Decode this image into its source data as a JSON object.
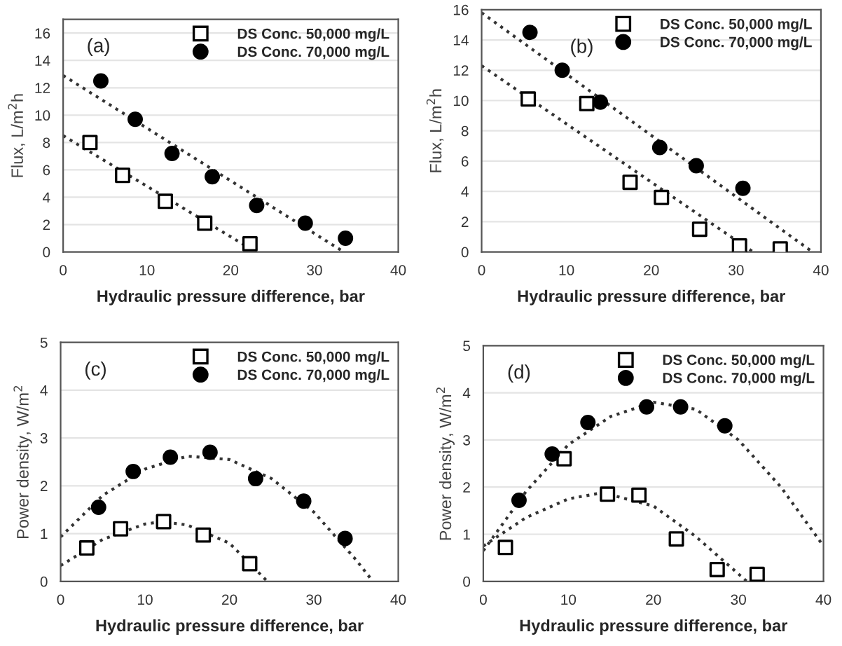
{
  "chart_data": [
    {
      "type": "scatter",
      "annotations": [
        "(a)"
      ],
      "xlabel": "Hydraulic pressure difference, bar",
      "ylabel": "Flux, L/m$^{2}$h",
      "xlim": [
        0,
        40
      ],
      "xticks": [
        0,
        10,
        20,
        30,
        40
      ],
      "ylim": [
        0,
        17
      ],
      "yticks": [
        0,
        2,
        4,
        6,
        8,
        10,
        12,
        14,
        16
      ],
      "grid": "y",
      "legend": "top right",
      "series": [
        {
          "name": "DS Conc. 50,000 mg/L",
          "color": "#000000",
          "marker": "square",
          "x": [
            3.2,
            7.1,
            12.2,
            16.9,
            22.3
          ],
          "values": [
            8.0,
            5.6,
            3.7,
            2.1,
            0.6
          ]
        },
        {
          "name": "DS Conc. 70,000 mg/L",
          "color": "#000000",
          "marker": "circle",
          "x": [
            4.5,
            8.6,
            13,
            17.8,
            23.1,
            28.9,
            33.7
          ],
          "values": [
            12.5,
            9.7,
            7.2,
            5.5,
            3.4,
            2.1,
            1.0
          ]
        },
        {
          "type": "line",
          "color": "#333333",
          "line_style": "dotted",
          "marker": "none",
          "x": [
            0,
            23
          ],
          "values": [
            8.5,
            0
          ]
        },
        {
          "type": "line",
          "color": "#333333",
          "line_style": "dotted",
          "marker": "none",
          "x": [
            0,
            33.5
          ],
          "values": [
            12.9,
            0
          ]
        }
      ]
    },
    {
      "type": "scatter",
      "annotations": [
        "(b)"
      ],
      "xlabel": "Hydraulic pressure difference, bar",
      "ylabel": "Flux, L/m$^{2}$h",
      "xlim": [
        0,
        40
      ],
      "xticks": [
        0,
        10,
        20,
        30,
        40
      ],
      "ylim": [
        0,
        16
      ],
      "yticks": [
        0,
        2,
        4,
        6,
        8,
        10,
        12,
        14,
        16
      ],
      "grid": "y",
      "legend": "top right",
      "series": [
        {
          "name": "DS Conc. 50,000 mg/L",
          "color": "#000000",
          "marker": "square",
          "x": [
            5.5,
            12.4,
            17.5,
            21.2,
            25.7,
            30.4,
            35.2
          ],
          "values": [
            10.1,
            9.8,
            4.6,
            3.6,
            1.5,
            0.4,
            0.2
          ]
        },
        {
          "name": "DS Conc. 70,000 mg/L",
          "color": "#000000",
          "marker": "circle",
          "x": [
            5.7,
            9.5,
            14,
            21,
            25.3,
            30.8
          ],
          "values": [
            14.5,
            12.0,
            9.9,
            6.9,
            5.7,
            4.2
          ]
        },
        {
          "type": "line",
          "color": "#333333",
          "line_style": "dotted",
          "marker": "none",
          "x": [
            0,
            32
          ],
          "values": [
            12.3,
            0
          ]
        },
        {
          "type": "line",
          "color": "#333333",
          "line_style": "dotted",
          "marker": "none",
          "x": [
            0,
            39
          ],
          "values": [
            15.8,
            0
          ]
        }
      ]
    },
    {
      "type": "scatter",
      "annotations": [
        "(c)"
      ],
      "xlabel": "Hydraulic pressure difference, bar",
      "ylabel": "Power density, W/m$^{2}$",
      "xlim": [
        0,
        40
      ],
      "xticks": [
        0,
        10,
        20,
        30,
        40
      ],
      "ylim": [
        0,
        5
      ],
      "yticks": [
        0,
        1,
        2,
        3,
        4,
        5
      ],
      "grid": "y",
      "legend": "top right",
      "series": [
        {
          "name": "DS Conc. 50,000 mg/L",
          "color": "#000000",
          "marker": "square",
          "x": [
            3.1,
            7.1,
            12.2,
            16.9,
            22.4
          ],
          "values": [
            0.7,
            1.1,
            1.25,
            0.97,
            0.37
          ]
        },
        {
          "name": "DS Conc. 70,000 mg/L",
          "color": "#000000",
          "marker": "circle",
          "x": [
            4.5,
            8.6,
            13,
            17.7,
            23.1,
            28.8,
            33.7
          ],
          "values": [
            1.55,
            2.3,
            2.6,
            2.7,
            2.15,
            1.68,
            0.9
          ]
        },
        {
          "type": "line",
          "color": "#333333",
          "line_style": "dotted",
          "marker": "none",
          "x": [
            0,
            5,
            10,
            12,
            15,
            20,
            24.5
          ],
          "values": [
            0.33,
            0.88,
            1.2,
            1.25,
            1.18,
            0.8,
            0
          ]
        },
        {
          "type": "line",
          "color": "#333333",
          "line_style": "dotted",
          "marker": "none",
          "x": [
            0,
            5,
            10,
            15,
            20,
            25,
            30,
            35,
            37
          ],
          "values": [
            0.93,
            1.8,
            2.35,
            2.62,
            2.55,
            2.15,
            1.45,
            0.45,
            0
          ]
        }
      ]
    },
    {
      "type": "scatter",
      "annotations": [
        "(d)"
      ],
      "xlabel": "Hydraulic pressure difference, bar",
      "ylabel": "Power density, W/m$^{2}$",
      "xlim": [
        0,
        40
      ],
      "xticks": [
        0,
        10,
        20,
        30,
        40
      ],
      "ylim": [
        0,
        5
      ],
      "yticks": [
        0,
        1,
        2,
        3,
        4,
        5
      ],
      "grid": "y",
      "legend": "top right",
      "series": [
        {
          "name": "DS Conc. 50,000 mg/L",
          "color": "#000000",
          "marker": "square",
          "x": [
            2.6,
            9.5,
            14.6,
            18.3,
            22.7,
            27.5,
            32.2
          ],
          "values": [
            0.72,
            2.6,
            1.85,
            1.83,
            0.9,
            0.25,
            0.15
          ]
        },
        {
          "name": "DS Conc. 70,000 mg/L",
          "color": "#000000",
          "marker": "circle",
          "x": [
            4.2,
            8.1,
            12.3,
            19.2,
            23.2,
            28.4
          ],
          "values": [
            1.72,
            2.7,
            3.37,
            3.7,
            3.7,
            3.3
          ]
        },
        {
          "type": "line",
          "color": "#333333",
          "line_style": "dotted",
          "marker": "none",
          "x": [
            0,
            5,
            10,
            14,
            20,
            25,
            31
          ],
          "values": [
            0.75,
            1.35,
            1.75,
            1.88,
            1.6,
            0.95,
            0
          ]
        },
        {
          "type": "line",
          "color": "#333333",
          "line_style": "dotted",
          "marker": "none",
          "x": [
            0,
            5,
            10,
            15,
            20,
            25,
            30,
            35,
            40
          ],
          "values": [
            0.65,
            1.9,
            2.9,
            3.5,
            3.8,
            3.65,
            3.0,
            2.0,
            0.75
          ]
        }
      ]
    }
  ]
}
